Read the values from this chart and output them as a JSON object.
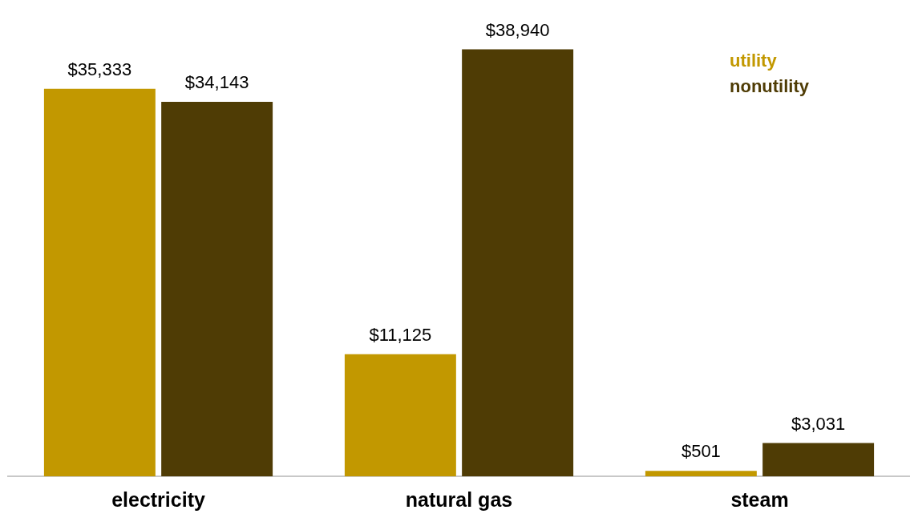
{
  "chart_data": {
    "type": "bar",
    "categories": [
      "electricity",
      "natural gas",
      "steam"
    ],
    "series": [
      {
        "name": "utility",
        "color": "#c29800",
        "values": [
          35333,
          11125,
          501
        ],
        "value_labels": [
          "$35,333",
          "$11,125",
          "$501"
        ]
      },
      {
        "name": "nonutility",
        "color": "#4f3c05",
        "values": [
          34143,
          38940,
          3031
        ],
        "value_labels": [
          "$34,143",
          "$38,940",
          "$3,031"
        ]
      }
    ],
    "legend": "top right",
    "grid": false
  }
}
